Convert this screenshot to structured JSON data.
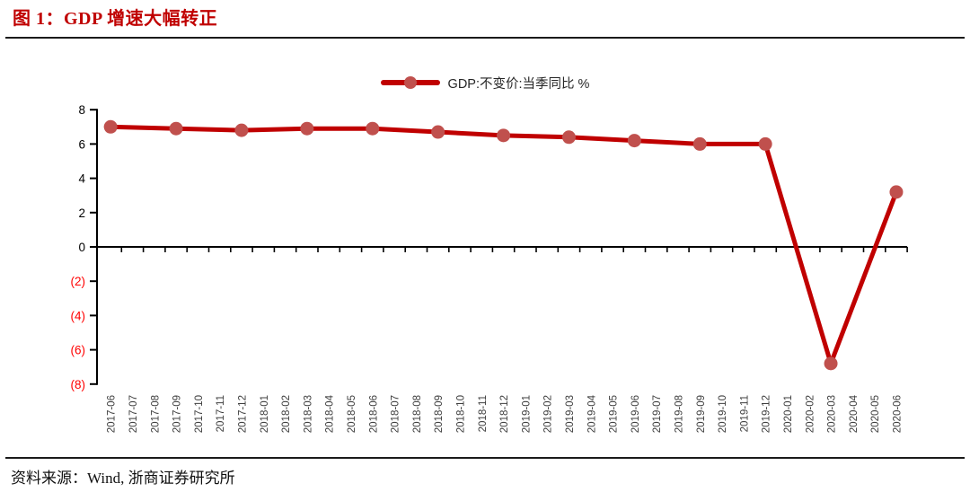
{
  "header": {
    "title": "图 1：GDP 增速大幅转正"
  },
  "legend": {
    "label": "GDP:不变价:当季同比 %"
  },
  "footer": {
    "source": "资料来源：Wind, 浙商证券研究所"
  },
  "colors": {
    "title_red": "#c00000",
    "line_red": "#c00000",
    "marker_red": "#c0504d",
    "negative_tick_red": "#ff0000",
    "axis_black": "#000000",
    "x_label_gray": "#3f3f3f",
    "y_label_black": "#000000"
  },
  "chart_data": {
    "type": "line",
    "title": "图 1：GDP 增速大幅转正",
    "legend_entries": [
      "GDP:不变价:当季同比 %"
    ],
    "legend_position": "top-center",
    "grid": false,
    "ylim": [
      -8,
      8
    ],
    "y_ticks": {
      "values": [
        8,
        6,
        4,
        2,
        0,
        -2,
        -4,
        -6,
        -8
      ],
      "labels": [
        "8",
        "6",
        "4",
        "2",
        "0",
        "(2)",
        "(4)",
        "(6)",
        "(8)"
      ]
    },
    "x_labels": [
      "2017-06",
      "2017-07",
      "2017-08",
      "2017-09",
      "2017-10",
      "2017-11",
      "2017-12",
      "2018-01",
      "2018-02",
      "2018-03",
      "2018-04",
      "2018-05",
      "2018-06",
      "2018-07",
      "2018-08",
      "2018-09",
      "2018-10",
      "2018-11",
      "2018-12",
      "2019-01",
      "2019-02",
      "2019-03",
      "2019-04",
      "2019-05",
      "2019-06",
      "2019-07",
      "2019-08",
      "2019-09",
      "2019-10",
      "2019-11",
      "2019-12",
      "2020-01",
      "2020-02",
      "2020-03",
      "2020-04",
      "2020-05",
      "2020-06"
    ],
    "series": [
      {
        "name": "GDP:不变价:当季同比 %",
        "x": [
          "2017-06",
          "2017-09",
          "2017-12",
          "2018-03",
          "2018-06",
          "2018-09",
          "2018-12",
          "2019-03",
          "2019-06",
          "2019-09",
          "2019-12",
          "2020-03",
          "2020-06"
        ],
        "values": [
          7.0,
          6.9,
          6.8,
          6.9,
          6.9,
          6.7,
          6.5,
          6.4,
          6.2,
          6.0,
          6.0,
          -6.8,
          3.2
        ]
      }
    ]
  }
}
